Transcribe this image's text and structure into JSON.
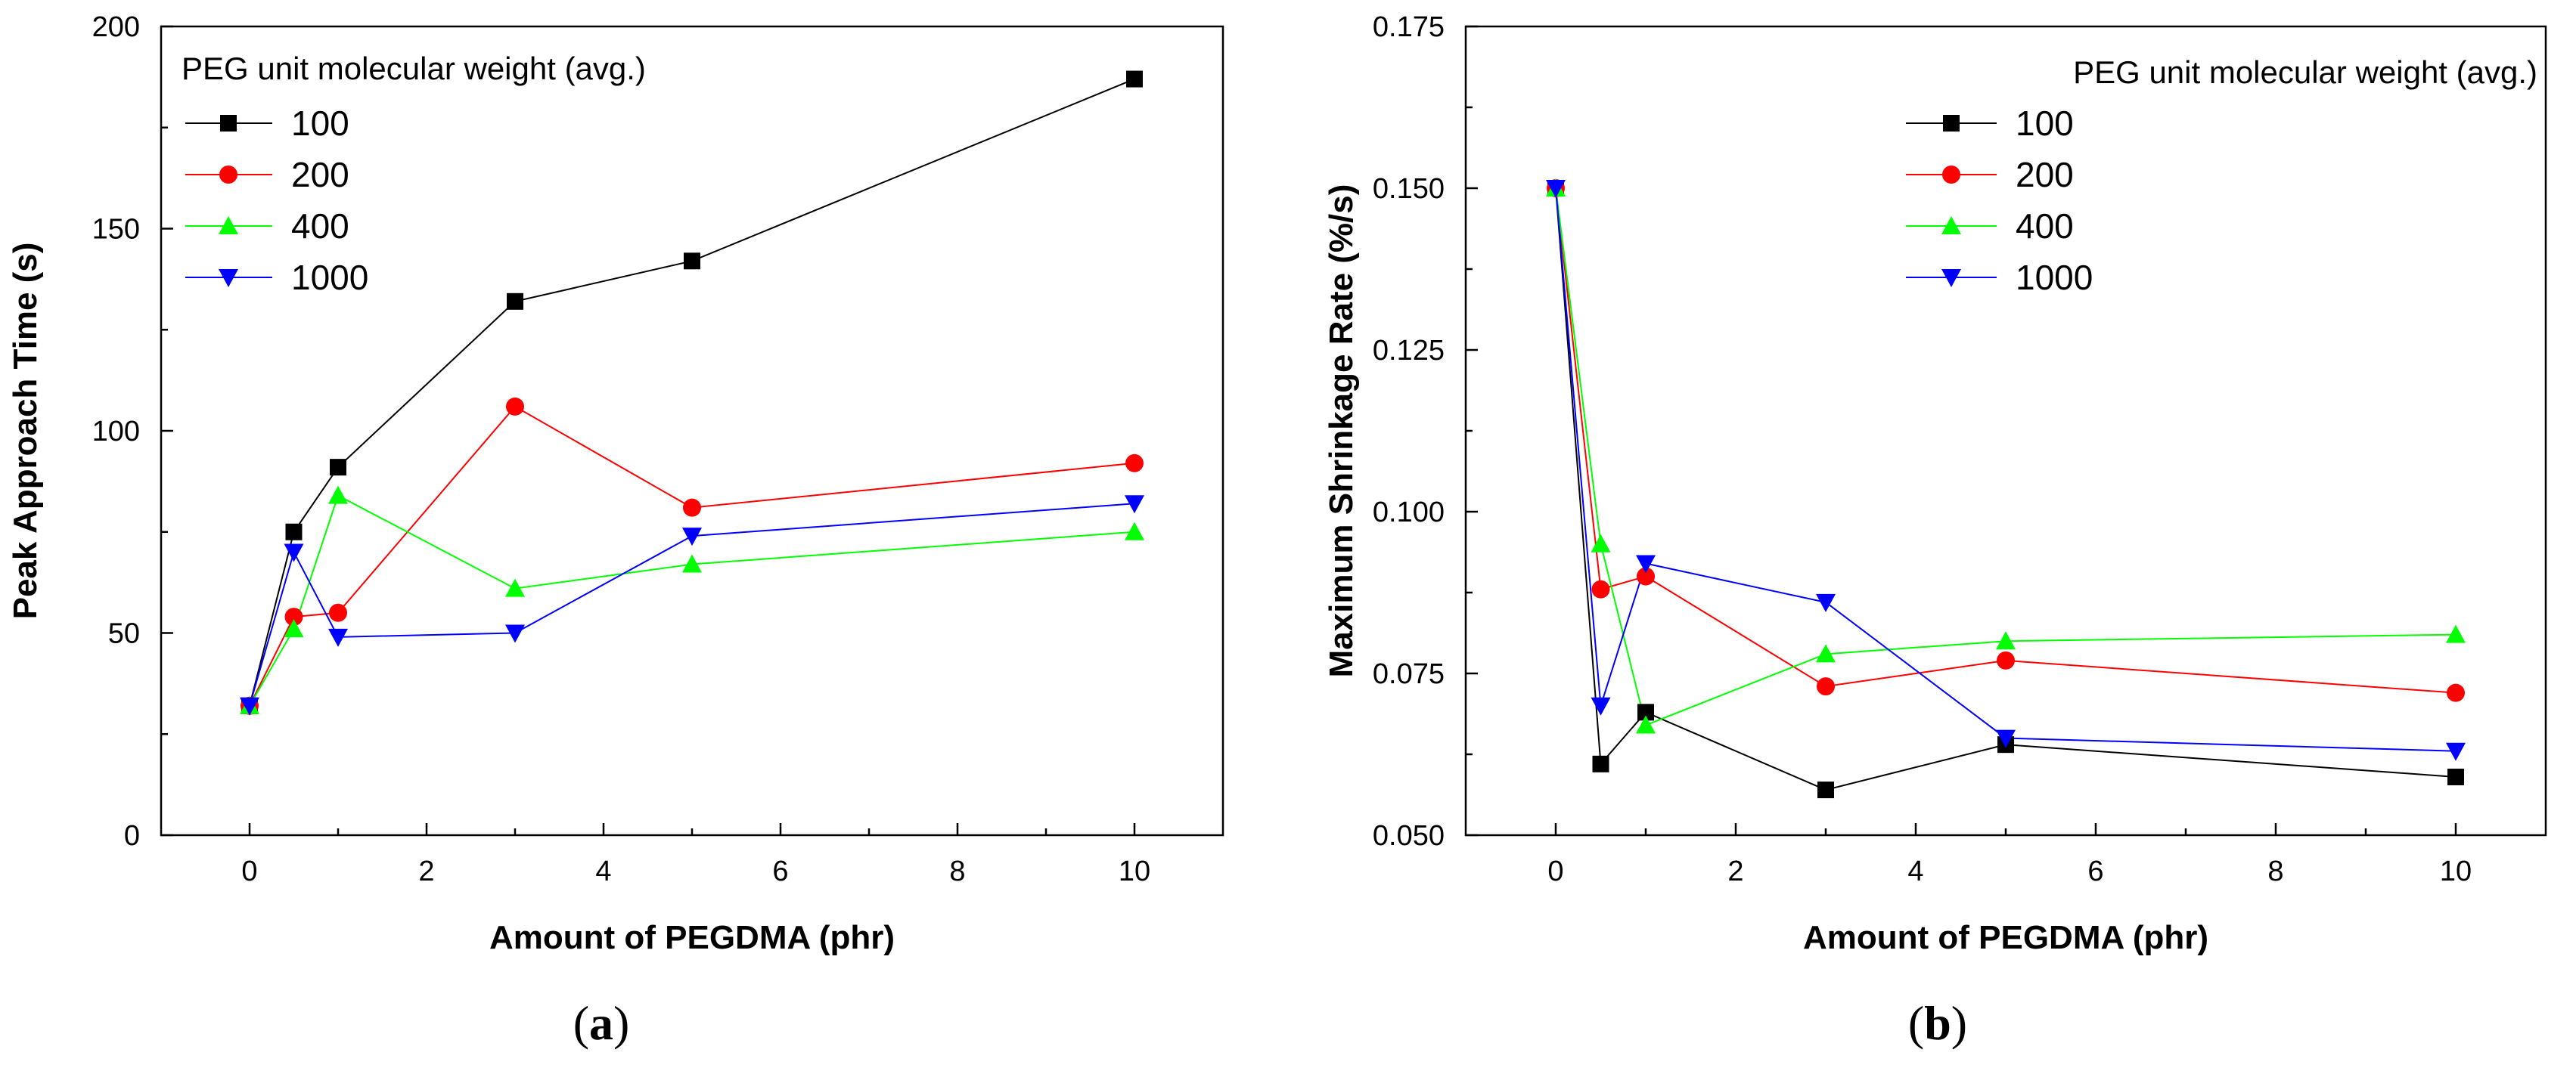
{
  "chart_data": [
    {
      "type": "line",
      "panel_label": "a",
      "title": "",
      "xlabel": "Amount of PEGDMA (phr)",
      "ylabel": "Peak Approach Time (s)",
      "xlim": [
        -1,
        11
      ],
      "ylim": [
        0,
        200
      ],
      "xticks": [
        0,
        2,
        4,
        6,
        8,
        10
      ],
      "yticks": [
        0,
        50,
        100,
        150,
        200
      ],
      "xtick_labels": [
        "0",
        "2",
        "4",
        "6",
        "8",
        "10"
      ],
      "ytick_labels": [
        "0",
        "50",
        "100",
        "150",
        "200"
      ],
      "grid": false,
      "legend_title": "PEG unit molecular weight (avg.)",
      "legend_position": "top-left",
      "x": [
        0,
        0.5,
        1,
        3,
        5,
        10
      ],
      "series": [
        {
          "name": "100",
          "color": "#000000",
          "marker": "square",
          "values": [
            32,
            75,
            91,
            132,
            142,
            187
          ]
        },
        {
          "name": "200",
          "color": "#ff0000",
          "marker": "circle",
          "values": [
            32,
            54,
            55,
            106,
            81,
            92
          ]
        },
        {
          "name": "400",
          "color": "#00ff00",
          "marker": "triangle-up",
          "values": [
            32,
            51,
            84,
            61,
            67,
            75
          ]
        },
        {
          "name": "1000",
          "color": "#0000ff",
          "marker": "triangle-down",
          "values": [
            32,
            70,
            49,
            50,
            74,
            82
          ]
        }
      ]
    },
    {
      "type": "line",
      "panel_label": "b",
      "title": "",
      "xlabel": "Amount of PEGDMA (phr)",
      "ylabel": "Maximum Shrinkage Rate (%/s)",
      "xlim": [
        -1,
        11
      ],
      "ylim": [
        0.05,
        0.175
      ],
      "xticks": [
        0,
        2,
        4,
        6,
        8,
        10
      ],
      "yticks": [
        0.05,
        0.075,
        0.1,
        0.125,
        0.15,
        0.175
      ],
      "xtick_labels": [
        "0",
        "2",
        "4",
        "6",
        "8",
        "10"
      ],
      "ytick_labels": [
        "0.050",
        "0.075",
        "0.100",
        "0.125",
        "0.150",
        "0.175"
      ],
      "grid": false,
      "legend_title": "PEG unit molecular weight (avg.)",
      "legend_position": "top-right",
      "x": [
        0,
        0.5,
        1,
        3,
        5,
        10
      ],
      "series": [
        {
          "name": "100",
          "color": "#000000",
          "marker": "square",
          "values": [
            0.15,
            0.061,
            0.069,
            0.057,
            0.064,
            0.059
          ]
        },
        {
          "name": "200",
          "color": "#ff0000",
          "marker": "circle",
          "values": [
            0.15,
            0.088,
            0.09,
            0.073,
            0.077,
            0.072
          ]
        },
        {
          "name": "400",
          "color": "#00ff00",
          "marker": "triangle-up",
          "values": [
            0.15,
            0.095,
            0.067,
            0.078,
            0.08,
            0.081
          ]
        },
        {
          "name": "1000",
          "color": "#0000ff",
          "marker": "triangle-down",
          "values": [
            0.15,
            0.07,
            0.092,
            0.086,
            0.065,
            0.063
          ]
        }
      ]
    }
  ]
}
